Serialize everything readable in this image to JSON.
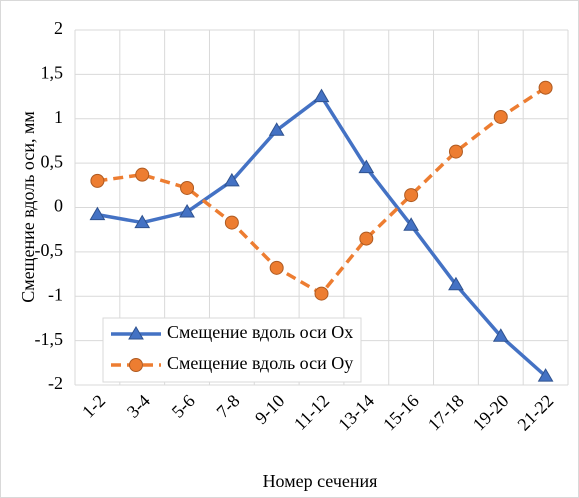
{
  "chart_data": {
    "type": "line",
    "x_label": "Номер сечения",
    "y_label": "Смещение вдоль оси, мм",
    "categories": [
      "1-2",
      "3-4",
      "5-6",
      "7-8",
      "9-10",
      "11-12",
      "13-14",
      "15-16",
      "17-18",
      "19-20",
      "21-22"
    ],
    "series": [
      {
        "name": "Смещение вдоль оси Ох",
        "color": "#4472c4",
        "marker": "triangle",
        "dash": "solid",
        "values": [
          -0.08,
          -0.17,
          -0.05,
          0.3,
          0.87,
          1.25,
          0.45,
          -0.2,
          -0.87,
          -1.45,
          -1.9
        ]
      },
      {
        "name": "Смещение вдоль оси Оу",
        "color": "#ed7d31",
        "marker": "circle",
        "dash": "dashed",
        "values": [
          0.3,
          0.37,
          0.22,
          -0.17,
          -0.68,
          -0.97,
          -0.35,
          0.14,
          0.63,
          1.02,
          1.35
        ]
      }
    ],
    "ylim": [
      -2,
      2
    ],
    "yticks": [
      -2,
      {
        "value": -1.5,
        "label": "-1,5"
      },
      -1,
      {
        "value": -0.5,
        "label": "-0,5"
      },
      0,
      {
        "value": 0.5,
        "label": "0,5"
      },
      1,
      {
        "value": 1.5,
        "label": "1,5"
      },
      2
    ],
    "grid": true,
    "legend": "lower left"
  }
}
